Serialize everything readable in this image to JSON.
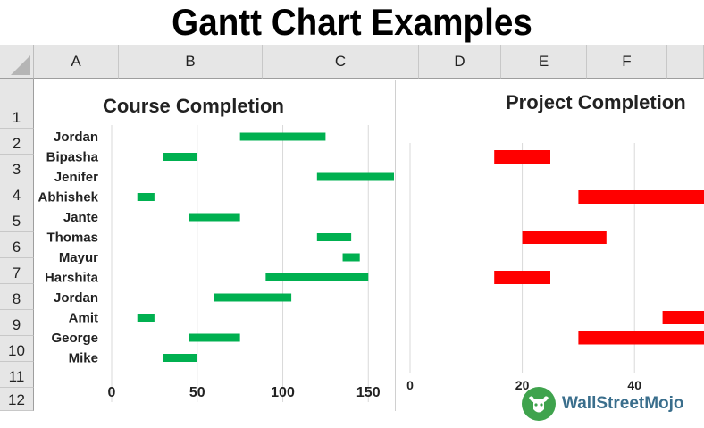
{
  "page": {
    "title": "Gantt Chart Examples"
  },
  "sheet": {
    "columns": [
      "A",
      "B",
      "C",
      "D",
      "E",
      "F"
    ],
    "rows": [
      "1",
      "2",
      "3",
      "4",
      "5",
      "6",
      "7",
      "8",
      "9",
      "10",
      "11",
      "12"
    ]
  },
  "colors": {
    "course_bar": "#00b050",
    "project_bar": "#ff0000",
    "gridline": "#d9d9d9"
  },
  "chart_data": [
    {
      "type": "bar",
      "orientation": "horizontal",
      "style": "gantt",
      "title": "Course Completion",
      "categories": [
        "Jordan",
        "Bipasha",
        "Jenifer",
        "Abhishek",
        "Jante",
        "Thomas",
        "Mayur",
        "Harshita",
        "Jordan",
        "Amit",
        "George",
        "Mike"
      ],
      "series": [
        {
          "start": [
            75,
            30,
            120,
            15,
            45,
            120,
            135,
            90,
            60,
            15,
            45,
            30
          ],
          "end": [
            125,
            50,
            165,
            25,
            75,
            140,
            145,
            150,
            105,
            25,
            75,
            50
          ]
        }
      ],
      "xlim": [
        0,
        165
      ],
      "xticks": [
        "0",
        "50",
        "100",
        "150"
      ],
      "grid": true
    },
    {
      "type": "bar",
      "orientation": "horizontal",
      "style": "gantt",
      "title": "Project Completion",
      "categories": [
        "",
        "",
        "",
        "",
        "",
        "",
        "",
        "",
        "",
        "",
        "",
        ""
      ],
      "series": [
        {
          "start": [
            null,
            15,
            null,
            30,
            null,
            20,
            null,
            15,
            null,
            45,
            30,
            null
          ],
          "end": [
            null,
            25,
            null,
            55,
            null,
            35,
            null,
            25,
            null,
            55,
            55,
            null
          ]
        }
      ],
      "xlim": [
        0,
        50
      ],
      "xticks": [
        "0",
        "20",
        "40"
      ],
      "grid": true
    }
  ],
  "logo": {
    "text": "WallStreetMojo"
  }
}
